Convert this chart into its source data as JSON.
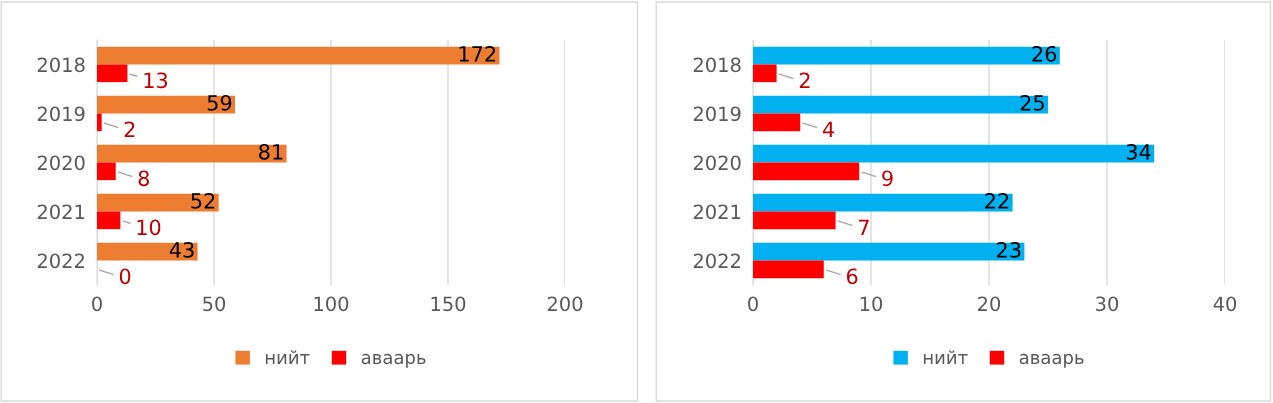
{
  "chart_data": [
    {
      "type": "bar",
      "orientation": "horizontal",
      "categories": [
        "2018",
        "2019",
        "2020",
        "2021",
        "2022"
      ],
      "series": [
        {
          "name": "нийт",
          "color": "#ed7d31",
          "values": [
            172,
            59,
            81,
            52,
            43
          ]
        },
        {
          "name": "аваарь",
          "color": "#ff0000",
          "values": [
            13,
            2,
            8,
            10,
            0
          ]
        }
      ],
      "xlim": [
        0,
        200
      ],
      "xticks": [
        0,
        50,
        100,
        150,
        200
      ],
      "grid": "x",
      "legend": "bottom",
      "data_labels": true
    },
    {
      "type": "bar",
      "orientation": "horizontal",
      "categories": [
        "2018",
        "2019",
        "2020",
        "2021",
        "2022"
      ],
      "series": [
        {
          "name": "нийт",
          "color": "#00b0f0",
          "values": [
            26,
            25,
            34,
            22,
            23
          ]
        },
        {
          "name": "аваарь",
          "color": "#ff0000",
          "values": [
            2,
            4,
            9,
            7,
            6
          ]
        }
      ],
      "xlim": [
        0,
        40
      ],
      "xticks": [
        0,
        10,
        20,
        30,
        40
      ],
      "grid": "x",
      "legend": "bottom",
      "data_labels": true
    }
  ]
}
